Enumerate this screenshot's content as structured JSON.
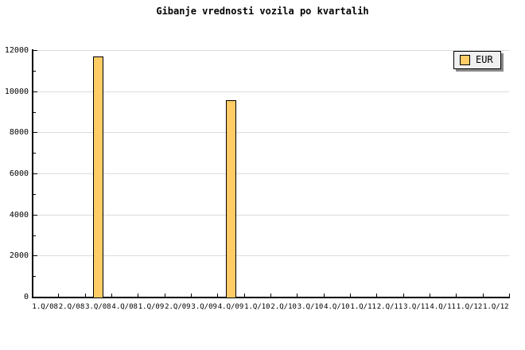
{
  "chart_data": {
    "type": "bar",
    "title": "Gibanje vrednosti vozila po kvartalih",
    "xlabel": "",
    "ylabel": "",
    "categories": [
      "1.Q/08",
      "2.Q/08",
      "3.Q/08",
      "4.Q/08",
      "1.Q/09",
      "2.Q/09",
      "3.Q/09",
      "4.Q/09",
      "1.Q/10",
      "2.Q/10",
      "3.Q/10",
      "4.Q/10",
      "1.Q/11",
      "2.Q/11",
      "3.Q/11",
      "4.Q/11",
      "1.Q/12",
      "1.Q/12"
    ],
    "series": [
      {
        "name": "EUR",
        "color": "#FFCC66",
        "values": [
          null,
          null,
          11700,
          null,
          null,
          null,
          null,
          9550,
          null,
          null,
          null,
          null,
          null,
          null,
          null,
          null,
          null,
          null
        ]
      }
    ],
    "ylim": [
      0,
      12000
    ],
    "y_ticks": [
      0,
      2000,
      4000,
      6000,
      8000,
      10000,
      12000
    ],
    "y_tick_labels": [
      "0",
      "2000",
      "4000",
      "6000",
      "8000",
      "10000",
      "12000"
    ],
    "y_major_step": 2000,
    "y_minor_step": 1000,
    "grid": "horizontal gridlines at major y ticks",
    "legend": {
      "label": "EUR",
      "position": "top-right",
      "swatch_color": "#FFCC66"
    },
    "colors": {
      "bar_fill": "#FFCC66",
      "bar_border": "#000000",
      "gridline": "#dcdcdc",
      "axis": "#000000",
      "legend_background": "#f0f0f0",
      "legend_shadow": "#8b8b8b",
      "background": "#ffffff"
    }
  }
}
